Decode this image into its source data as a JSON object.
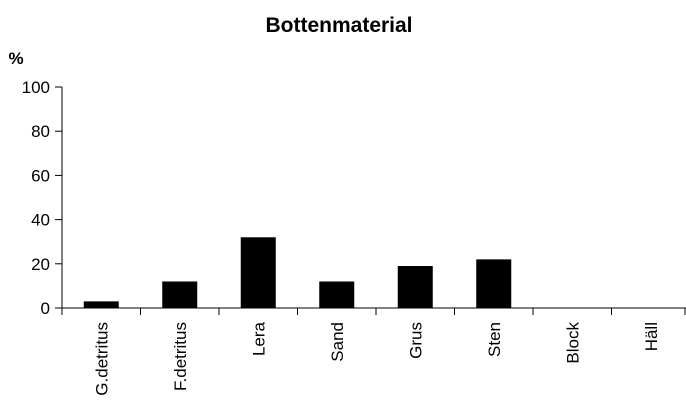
{
  "chart_data": {
    "type": "bar",
    "title": "Bottenmaterial",
    "ylabel": "%",
    "xlabel": "",
    "categories": [
      "G.detritus",
      "F.detritus",
      "Lera",
      "Sand",
      "Grus",
      "Sten",
      "Block",
      "Häll"
    ],
    "values": [
      3,
      12,
      32,
      12,
      19,
      22,
      0,
      0
    ],
    "ylim": [
      0,
      100
    ],
    "yticks": [
      0,
      20,
      40,
      60,
      80,
      100
    ],
    "bar_color": "#000000",
    "grid": false,
    "legend": "none"
  }
}
